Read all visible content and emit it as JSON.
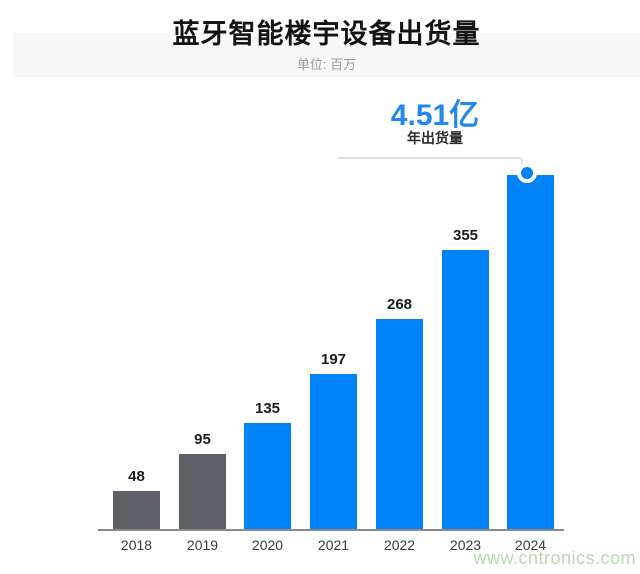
{
  "header": {
    "title": "蓝牙智能楼宇设备出货量",
    "subtitle": "单位: 百万"
  },
  "highlight": {
    "value": "4.51亿",
    "label": "年出货量"
  },
  "watermark": "www.cntronics.com",
  "colors": {
    "bar_blue": "#0082f8",
    "bar_gray": "#5d6065",
    "accent_text": "#2288f0",
    "callout_line": "#dddddd",
    "axis_line": "#8a8a8a",
    "watermark": "#b2dcaa",
    "header_band": "#f7f7f7"
  },
  "chart_data": {
    "type": "bar",
    "title": "蓝牙智能楼宇设备出货量",
    "unit_note": "单位: 百万",
    "categories": [
      "2018",
      "2019",
      "2020",
      "2021",
      "2022",
      "2023",
      "2024"
    ],
    "values": [
      48,
      95,
      135,
      197,
      268,
      355,
      451
    ],
    "bar_labels": [
      "48",
      "95",
      "135",
      "197",
      "268",
      "355",
      ""
    ],
    "bar_colors": [
      "#5d6065",
      "#5d6065",
      "#0082f8",
      "#0082f8",
      "#0082f8",
      "#0082f8",
      "#0082f8"
    ],
    "annotation": {
      "text": "4.51亿",
      "sub_text": "年出货量",
      "applies_to_category": "2024"
    },
    "marker": {
      "index": 6,
      "color": "#0082f8"
    },
    "xlabel": "",
    "ylabel": "",
    "ylim": [
      0,
      451
    ],
    "grid": false,
    "legend": false
  }
}
